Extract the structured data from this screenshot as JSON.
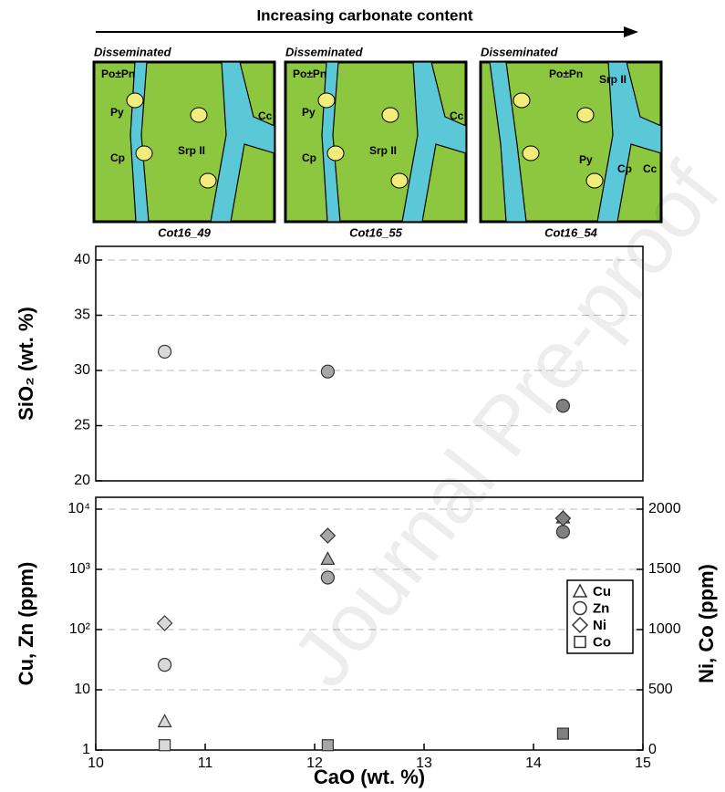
{
  "arrow_label": "Increasing carbonate content",
  "panels": [
    {
      "style": "Disseminated",
      "sample": "Cot16_49",
      "labels": [
        "Po±Pn",
        "Py",
        "Cp",
        "Srp II",
        "Cc"
      ]
    },
    {
      "style": "Disseminated",
      "sample": "Cot16_55",
      "labels": [
        "Po±Pn",
        "Py",
        "Cp",
        "Srp II",
        "Cc"
      ]
    },
    {
      "style": "Disseminated",
      "sample": "Cot16_54",
      "labels": [
        "Po±Pn",
        "Py",
        "Cp",
        "Srp II",
        "Cc"
      ]
    }
  ],
  "watermark": "Journal Pre-proof",
  "chart_data": [
    {
      "type": "scatter",
      "ylabel": "SiO₂ (wt. %)",
      "x": [
        10.63,
        12.12,
        14.27
      ],
      "values": [
        31.7,
        29.9,
        26.8
      ],
      "colors": [
        "#d9d9d9",
        "#a6a6a6",
        "#808080"
      ],
      "xlim": [
        10,
        15
      ],
      "ylim": [
        20,
        40
      ],
      "yticks": [
        20,
        25,
        30,
        35,
        40
      ],
      "grid": true
    },
    {
      "type": "scatter",
      "xlabel": "CaO (wt. %)",
      "ylabel": "Cu, Zn (ppm)",
      "y2label": "Ni, Co (ppm)",
      "x": [
        10.63,
        12.12,
        14.27
      ],
      "point_colors": [
        "#d9d9d9",
        "#a6a6a6",
        "#808080"
      ],
      "xlim": [
        10,
        15
      ],
      "xticks": [
        10,
        11,
        12,
        13,
        14,
        15
      ],
      "yscale": "log",
      "ylim": [
        1,
        10000
      ],
      "yticks": [
        1,
        10,
        {
          "value": 100,
          "label": "10²"
        },
        {
          "value": 1000,
          "label": "10³"
        },
        {
          "value": 10000,
          "label": "10⁴"
        }
      ],
      "y2lim": [
        0,
        2000
      ],
      "y2ticks": [
        0,
        500,
        1000,
        1500,
        2000
      ],
      "grid": true,
      "legend": "right",
      "series": [
        {
          "name": "Cu",
          "marker": "triangle",
          "values": [
            3,
            1500,
            7300
          ]
        },
        {
          "name": "Zn",
          "marker": "circle",
          "values": [
            26,
            730,
            4200
          ]
        },
        {
          "name": "Ni",
          "marker": "diamond",
          "axis": "y2",
          "values": [
            1053,
            1780,
            1924
          ]
        },
        {
          "name": "Co",
          "marker": "square",
          "axis": "y2",
          "values": [
            40,
            40,
            136
          ]
        }
      ]
    }
  ]
}
